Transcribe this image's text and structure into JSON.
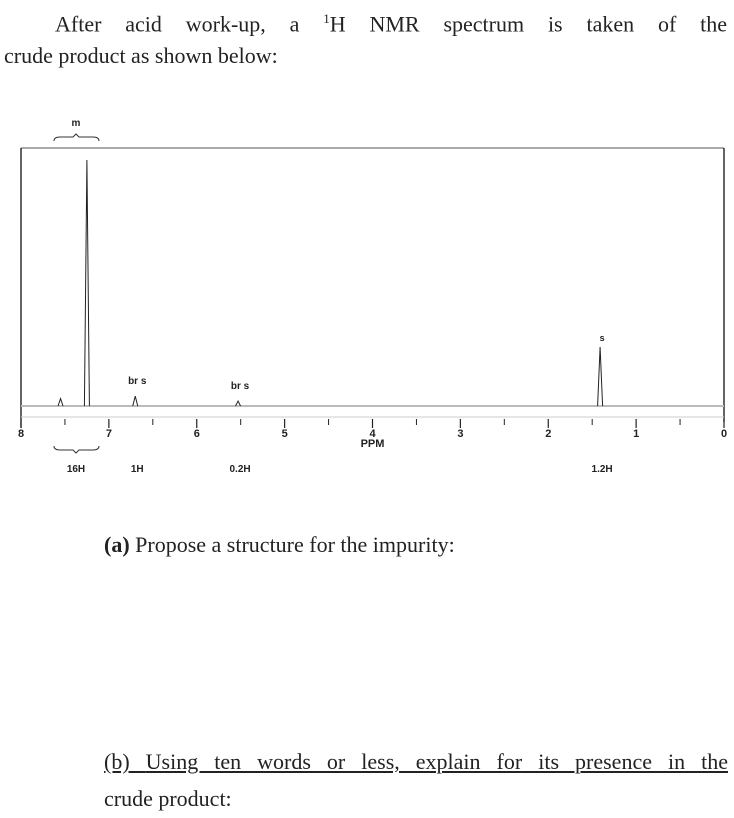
{
  "intro": {
    "line1_pre": "After acid work-up, a ",
    "superscript": "1",
    "line1_post": "H NMR spectrum is taken of the",
    "line2": "crude product as shown below:"
  },
  "chart_data": {
    "type": "line",
    "title": "",
    "xlabel": "PPM",
    "xlim": [
      8,
      0
    ],
    "x_reversed": true,
    "grid": false,
    "x_ticks": [
      "8",
      "7",
      "6",
      "5",
      "4",
      "3",
      "2",
      "1",
      "0"
    ],
    "peaks": [
      {
        "ppm": 7.55,
        "relative_height": 0.03
      },
      {
        "ppm": 7.25,
        "relative_height": 1.0
      },
      {
        "ppm": 6.7,
        "relative_height": 0.04
      },
      {
        "ppm": 5.53,
        "relative_height": 0.02
      },
      {
        "ppm": 1.41,
        "relative_height": 0.24
      }
    ],
    "annotations": [
      {
        "ppm": 7.35,
        "multiplicity": "m",
        "integration": "16H"
      },
      {
        "ppm": 6.7,
        "multiplicity": "br s",
        "integration": "1H"
      },
      {
        "ppm": 5.53,
        "multiplicity": "br s",
        "integration": "0.2H"
      },
      {
        "ppm": 1.41,
        "multiplicity": "s",
        "integration": "1.2H"
      }
    ]
  },
  "question_a": {
    "label": "(a)",
    "text": " Propose a structure for the impurity:"
  },
  "question_b": {
    "label": "(b) ",
    "text": "Using ten words or less, explain for its presence in the",
    "line2": "crude product:"
  }
}
